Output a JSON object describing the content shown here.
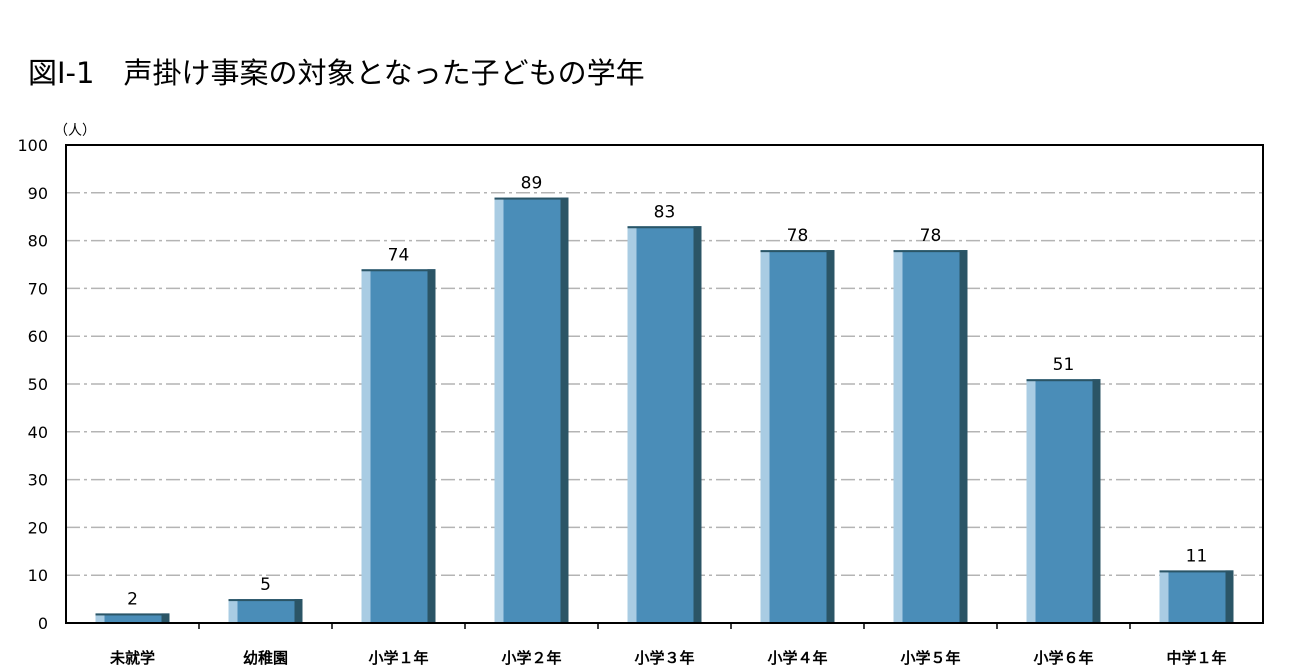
{
  "chart_data": {
    "type": "bar",
    "title": "図I-1　声掛け事案の対象となった子どもの学年",
    "ylabel": "（人）",
    "xlabel": "",
    "ylim": [
      0,
      100
    ],
    "yticks": [
      0,
      10,
      20,
      30,
      40,
      50,
      60,
      70,
      80,
      90,
      100
    ],
    "grid": true,
    "categories": [
      "未就学",
      "幼稚園",
      "小学１年",
      "小学２年",
      "小学３年",
      "小学４年",
      "小学５年",
      "小学６年",
      "中学１年"
    ],
    "values": [
      2,
      5,
      74,
      89,
      83,
      78,
      78,
      51,
      11
    ],
    "colors": {
      "bar_front": "#4a8db8",
      "bar_highlight": "#a9cce3",
      "bar_shadow": "#2b5566",
      "grid": "#b4b4b4",
      "axis": "#000000"
    }
  }
}
